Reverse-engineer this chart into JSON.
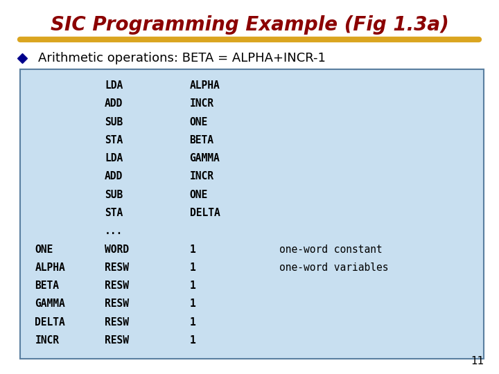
{
  "title": "SIC Programming Example (Fig 1.3a)",
  "title_color": "#8B0000",
  "bullet_color": "#00008B",
  "bullet_text": "Arithmetic operations: BETA = ALPHA+INCR-1",
  "bullet_text_color": "#000000",
  "underline_color": "#DAA520",
  "bg_color": "#FFFFFF",
  "table_bg_color": "#C8DFF0",
  "table_border_color": "#5A7FA0",
  "slide_number": "11",
  "code_font_size": 10.5,
  "code_color": "#000000",
  "comment_color": "#000000",
  "lines": [
    [
      "",
      "LDA",
      "ALPHA",
      "",
      ""
    ],
    [
      "",
      "ADD",
      "INCR",
      "",
      ""
    ],
    [
      "",
      "SUB",
      "ONE",
      "",
      ""
    ],
    [
      "",
      "STA",
      "BETA",
      "",
      ""
    ],
    [
      "",
      "LDA",
      "GAMMA",
      "",
      ""
    ],
    [
      "",
      "ADD",
      "INCR",
      "",
      ""
    ],
    [
      "",
      "SUB",
      "ONE",
      "",
      ""
    ],
    [
      "",
      "STA",
      "DELTA",
      "",
      ""
    ],
    [
      "",
      "...",
      "",
      "",
      ""
    ],
    [
      "ONE",
      "WORD",
      "1",
      "one-word constant",
      ""
    ],
    [
      "ALPHA",
      "RESW",
      "1",
      "one-word variables",
      ""
    ],
    [
      "BETA",
      "RESW",
      "1",
      "",
      ""
    ],
    [
      "GAMMA",
      "RESW",
      "1",
      "",
      ""
    ],
    [
      "DELTA",
      "RESW",
      "1",
      "",
      ""
    ],
    [
      "INCR",
      "RESW",
      "1",
      "",
      ""
    ]
  ]
}
